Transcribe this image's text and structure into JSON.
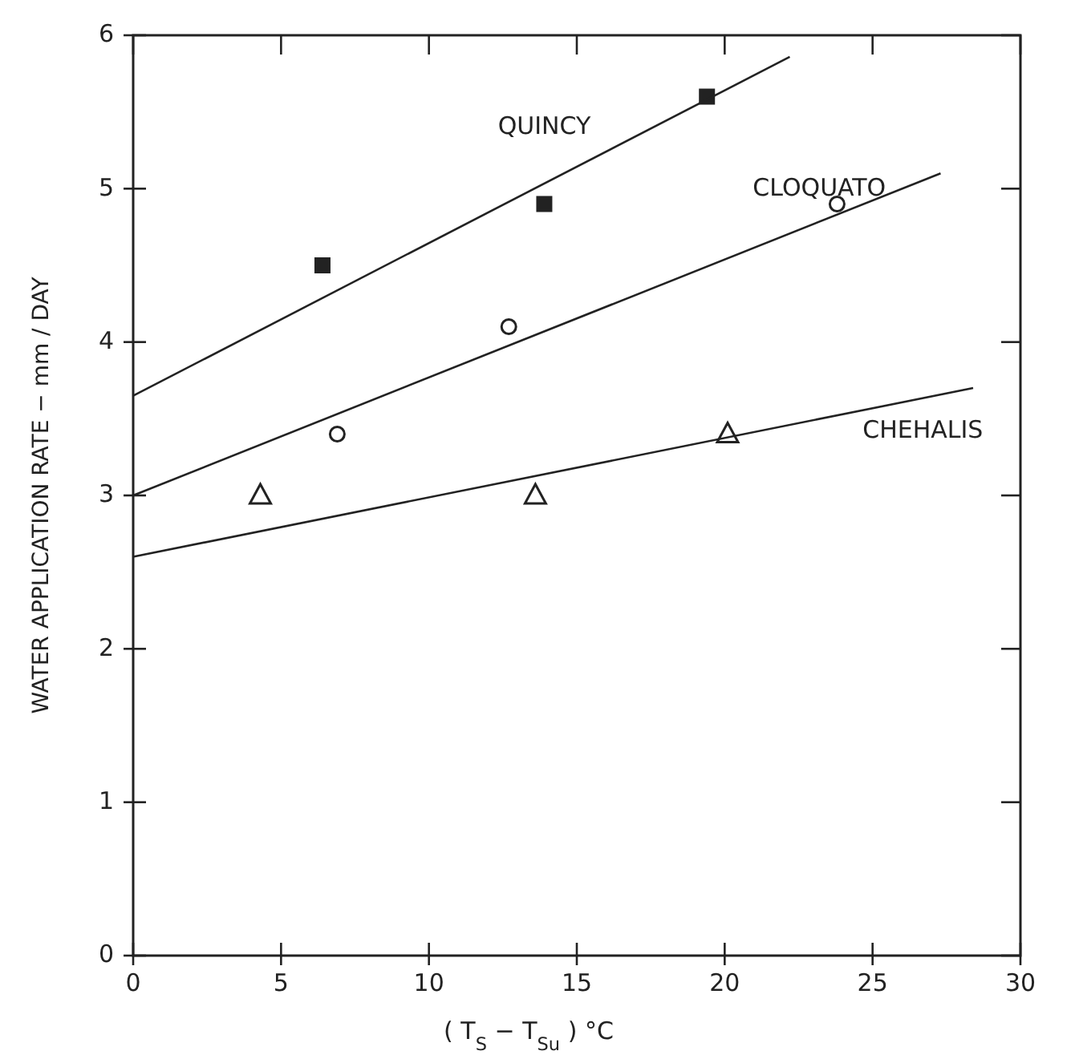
{
  "chart_data": {
    "type": "scatter",
    "xlabel": "( T$_{S}$ − T$_{Su}$ ) °C",
    "ylabel": "WATER APPLICATION RATE − mm / DAY",
    "xlim": [
      0,
      30
    ],
    "ylim": [
      0,
      6
    ],
    "xticks": [
      0,
      5,
      10,
      15,
      20,
      25,
      30
    ],
    "yticks": [
      0,
      1,
      2,
      3,
      4,
      5,
      6
    ],
    "grid": false,
    "legend": false,
    "series": [
      {
        "marker": "square",
        "color": "#222222",
        "x": [
          6.4,
          13.9,
          19.4
        ],
        "values": [
          4.5,
          4.9,
          5.6
        ]
      },
      {
        "marker": "circle",
        "color": "#222222",
        "x": [
          6.9,
          12.7,
          23.8
        ],
        "values": [
          3.4,
          4.1,
          4.9
        ]
      },
      {
        "marker": "triangle",
        "color": "#222222",
        "x": [
          4.3,
          13.6,
          20.1
        ],
        "values": [
          3.0,
          3.0,
          3.4
        ]
      },
      {
        "name": "QUINCY",
        "type": "line",
        "marker": "none",
        "line_style": "solid",
        "color": "#222222",
        "x": [
          0,
          22.2
        ],
        "values": [
          3.65,
          5.86
        ]
      },
      {
        "name": "CLOQUATO",
        "type": "line",
        "marker": "none",
        "line_style": "solid",
        "color": "#222222",
        "x": [
          0,
          27.3
        ],
        "values": [
          3.0,
          5.1
        ]
      },
      {
        "name": "CHEHALIS",
        "type": "line",
        "marker": "none",
        "line_style": "solid",
        "color": "#222222",
        "x": [
          0,
          28.4
        ],
        "values": [
          2.6,
          3.7
        ]
      }
    ]
  }
}
